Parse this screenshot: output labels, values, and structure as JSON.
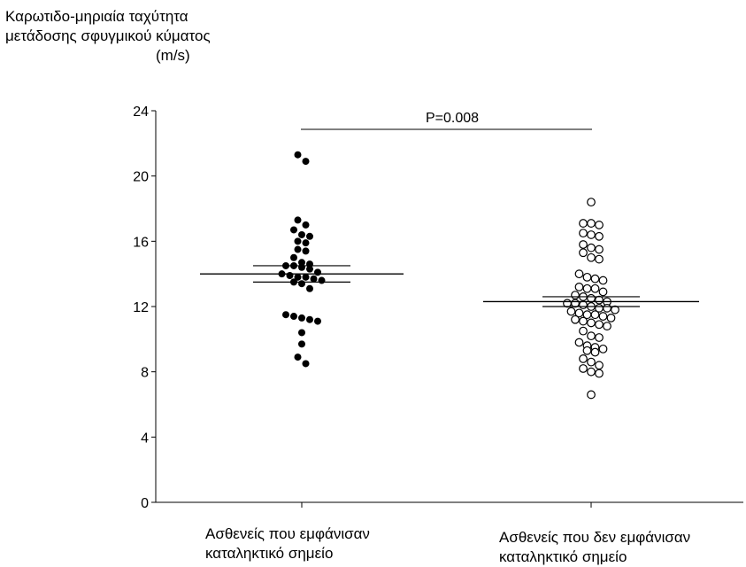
{
  "chart_data": {
    "type": "scatter",
    "title": "",
    "ylabel_lines": [
      "Καρωτιδο-μηριαία ταχύτητα",
      "μετάδοσης σφυγμικού κύματος",
      "(m/s)"
    ],
    "ylim": [
      0,
      24
    ],
    "yticks": [
      "0",
      "4",
      "8",
      "12",
      "16",
      "20",
      "24"
    ],
    "categories": [
      [
        "Ασθενείς που εμφάνισαν",
        "καταληκτικό σημείο"
      ],
      [
        "Ασθενείς που δεν εμφάνισαν",
        "καταληκτικό σημείο"
      ]
    ],
    "annotation": "P=0.008",
    "grid": false,
    "series": [
      {
        "marker": "filled-circle",
        "mean": 14.0,
        "error": [
          13.5,
          14.5
        ],
        "values": [
          21.3,
          20.9,
          17.3,
          17.0,
          16.7,
          16.4,
          16.3,
          16.0,
          15.9,
          15.5,
          15.4,
          15.0,
          14.7,
          14.6,
          14.5,
          14.5,
          14.4,
          14.3,
          14.1,
          14.0,
          13.9,
          13.8,
          13.8,
          13.7,
          13.6,
          13.5,
          13.4,
          13.1,
          11.5,
          11.4,
          11.3,
          11.2,
          11.1,
          10.4,
          9.7,
          8.9,
          8.5
        ]
      },
      {
        "marker": "open-circle",
        "mean": 12.3,
        "error": [
          12.0,
          12.6
        ],
        "values": [
          18.4,
          17.1,
          17.1,
          17.0,
          16.5,
          16.4,
          16.3,
          15.8,
          15.6,
          15.5,
          15.3,
          15.0,
          14.9,
          14.0,
          13.8,
          13.7,
          13.6,
          13.2,
          13.1,
          13.1,
          12.9,
          12.7,
          12.6,
          12.5,
          12.4,
          12.3,
          12.2,
          12.2,
          12.1,
          12.0,
          11.9,
          11.9,
          11.8,
          11.7,
          11.6,
          11.5,
          11.5,
          11.4,
          11.3,
          11.2,
          11.1,
          11.0,
          10.9,
          10.8,
          10.5,
          10.2,
          10.1,
          9.8,
          9.6,
          9.5,
          9.4,
          9.3,
          9.2,
          8.8,
          8.6,
          8.4,
          8.2,
          8.0,
          7.9,
          6.6
        ]
      }
    ]
  }
}
